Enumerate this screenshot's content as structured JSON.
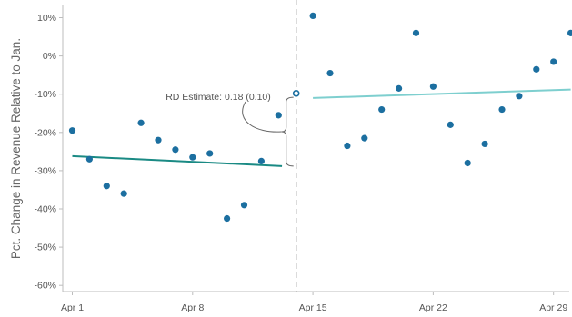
{
  "chart_data": {
    "type": "scatter",
    "title": "",
    "xlabel": "",
    "ylabel": "Pct. Change in Revenue Relative to Jan.",
    "x_tick_labels": [
      "Apr 1",
      "Apr 8",
      "Apr 15",
      "Apr 22",
      "Apr 29"
    ],
    "x_tick_days": [
      1,
      8,
      15,
      22,
      29
    ],
    "xlim": [
      1,
      30
    ],
    "y_ticks": [
      10,
      0,
      -10,
      -20,
      -30,
      -40,
      -50,
      -60
    ],
    "y_tick_labels": [
      "10%",
      "0%",
      "-10%",
      "-20%",
      "-30%",
      "-40%",
      "-50%",
      "-60%"
    ],
    "ylim": [
      -62,
      12
    ],
    "grid": false,
    "cutoff_day": 14,
    "points": [
      {
        "day": 1,
        "value": -19.5
      },
      {
        "day": 2,
        "value": -27
      },
      {
        "day": 3,
        "value": -34
      },
      {
        "day": 4,
        "value": -36
      },
      {
        "day": 5,
        "value": -17.5
      },
      {
        "day": 6,
        "value": -22
      },
      {
        "day": 7,
        "value": -24.5
      },
      {
        "day": 8,
        "value": -26.5
      },
      {
        "day": 9,
        "value": -25.5
      },
      {
        "day": 10,
        "value": -42.5
      },
      {
        "day": 11,
        "value": -39
      },
      {
        "day": 12,
        "value": -27.5
      },
      {
        "day": 13,
        "value": -15.5
      },
      {
        "day": 15,
        "value": 10.5
      },
      {
        "day": 16,
        "value": -4.5
      },
      {
        "day": 17,
        "value": -23.5
      },
      {
        "day": 18,
        "value": -21.5
      },
      {
        "day": 19,
        "value": -14
      },
      {
        "day": 20,
        "value": -8.5
      },
      {
        "day": 21,
        "value": 6
      },
      {
        "day": 22,
        "value": -8
      },
      {
        "day": 23,
        "value": -18
      },
      {
        "day": 24,
        "value": -28
      },
      {
        "day": 25,
        "value": -23
      },
      {
        "day": 26,
        "value": -14
      },
      {
        "day": 27,
        "value": -10.5
      },
      {
        "day": 28,
        "value": -3.5
      },
      {
        "day": 29,
        "value": -1.5
      },
      {
        "day": 30,
        "value": 6
      }
    ],
    "cutoff_point": {
      "day": 14,
      "value": -9.8
    },
    "fit_lines": [
      {
        "from": [
          1,
          -26.2
        ],
        "to": [
          13.2,
          -28.8
        ],
        "color": "#1a8a84"
      },
      {
        "from": [
          15,
          -11
        ],
        "to": [
          30,
          -8.8
        ],
        "color": "#7ecfcf"
      }
    ],
    "annotation": {
      "text": "RD Estimate: 0.18 (0.10)",
      "bracket_from": -10.8,
      "bracket_to": -28.8
    },
    "colors": {
      "points": "#1c6fa0",
      "vline": "#888888",
      "axis": "#bdbdbd",
      "bracket": "#666666"
    }
  }
}
